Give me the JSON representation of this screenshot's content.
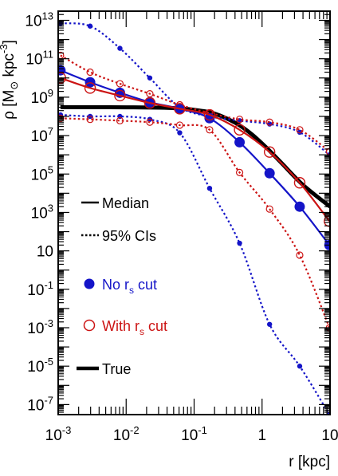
{
  "chart_data": {
    "type": "line",
    "x_scale": "log",
    "y_scale": "log",
    "xlim": [
      0.001,
      10
    ],
    "ylim": [
      3e-08,
      30000000000000.0
    ],
    "xlabel": "r  [kpc]",
    "ylabel": "ρ  [M☉ kpc⁻³]",
    "x_ticks": [
      {
        "value": 0.001,
        "base": "10",
        "exp": "-3"
      },
      {
        "value": 0.01,
        "base": "10",
        "exp": "-2"
      },
      {
        "value": 0.1,
        "base": "10",
        "exp": "-1"
      },
      {
        "value": 1,
        "base": "1",
        "exp": ""
      },
      {
        "value": 10,
        "base": "10",
        "exp": ""
      }
    ],
    "y_ticks": [
      {
        "value": 1e-07,
        "base": "10",
        "exp": "-7"
      },
      {
        "value": 1e-05,
        "base": "10",
        "exp": "-5"
      },
      {
        "value": 0.001,
        "base": "10",
        "exp": "-3"
      },
      {
        "value": 0.1,
        "base": "10",
        "exp": "-1"
      },
      {
        "value": 10,
        "base": "10",
        "exp": ""
      },
      {
        "value": 1000.0,
        "base": "10",
        "exp": "3"
      },
      {
        "value": 100000.0,
        "base": "10",
        "exp": "5"
      },
      {
        "value": 10000000.0,
        "base": "10",
        "exp": "7"
      },
      {
        "value": 1000000000.0,
        "base": "10",
        "exp": "9"
      },
      {
        "value": 100000000000.0,
        "base": "10",
        "exp": "11"
      },
      {
        "value": 10000000000000.0,
        "base": "10",
        "exp": "13"
      }
    ],
    "legend": [
      {
        "label": "Median",
        "sub": "",
        "suffix": "",
        "style": "solid-line",
        "color": "#000000"
      },
      {
        "label": "95% CIs",
        "sub": "",
        "suffix": "",
        "style": "dotted-line",
        "color": "#000000"
      },
      {
        "label": "No r",
        "sub": "s",
        "suffix": " cut",
        "style": "filled-circle",
        "color": "#1414c8"
      },
      {
        "label": "With r",
        "sub": "s",
        "suffix": " cut",
        "style": "open-circle",
        "color": "#cc1414"
      },
      {
        "label": "True",
        "sub": "",
        "suffix": "",
        "style": "thick-line",
        "color": "#000000"
      }
    ],
    "marker_x": [
      0.00108,
      0.00295,
      0.0081,
      0.0223,
      0.0614,
      0.169,
      0.467,
      1.29,
      3.58,
      9.8
    ],
    "series": [
      {
        "style": "true",
        "color": "#000000",
        "x": [
          0.00108,
          0.003,
          0.01,
          0.03,
          0.06,
          0.1,
          0.2,
          0.4,
          0.7,
          1.2,
          2,
          4,
          10
        ],
        "y": [
          300000000.0,
          300000000.0,
          296000000.0,
          285000000.0,
          260000000.0,
          220000000.0,
          140000000.0,
          47000000.0,
          12000000.0,
          2100000.0,
          330000.0,
          27000.0,
          2000
        ]
      },
      {
        "style": "median",
        "color": "#1414c8",
        "marker": "filled-large",
        "x": [
          0.00108,
          0.00295,
          0.0081,
          0.0223,
          0.0614,
          0.169,
          0.467,
          1.29,
          3.58,
          9.8
        ],
        "y": [
          25000000000.0,
          6000000000.0,
          1700000000.0,
          550000000.0,
          250000000.0,
          80000000.0,
          4500000.0,
          110000.0,
          2000,
          20
        ]
      },
      {
        "style": "median",
        "color": "#cc1414",
        "marker": "open-large",
        "x": [
          0.00108,
          0.00295,
          0.0081,
          0.0223,
          0.0614,
          0.169,
          0.467,
          1.29,
          3.58,
          9.8
        ],
        "y": [
          10000000000.0,
          3000000000.0,
          1200000000.0,
          500000000.0,
          250000000.0,
          120000000.0,
          20000000.0,
          1400000.0,
          35000.0,
          350
        ]
      },
      {
        "style": "ci",
        "color": "#1414c8",
        "marker": "filled-small",
        "x": [
          0.00108,
          0.00295,
          0.0081,
          0.0223,
          0.0614,
          0.169,
          0.467,
          1.29,
          3.58,
          9.8
        ],
        "y": [
          7000000000000.0,
          5000000000000.0,
          350000000000.0,
          10000000000.0,
          300000000.0,
          100000000.0,
          60000000.0,
          40000000.0,
          15000000.0,
          1000000.0
        ]
      },
      {
        "style": "ci",
        "color": "#1414c8",
        "marker": "filled-small",
        "x": [
          0.00108,
          0.00295,
          0.0081,
          0.0223,
          0.0614,
          0.169,
          0.467,
          1.29,
          3.58,
          9.8
        ],
        "y": [
          120000000.0,
          100000000.0,
          100000000.0,
          70000000.0,
          14000000.0,
          18000.0,
          25,
          0.0015,
          1e-05,
          3e-08
        ]
      },
      {
        "style": "ci",
        "color": "#cc1414",
        "marker": "open-small",
        "x": [
          0.00108,
          0.00295,
          0.0081,
          0.0223,
          0.0614,
          0.169,
          0.467,
          1.29,
          3.58,
          9.8
        ],
        "y": [
          150000000000.0,
          20000000000.0,
          5000000000.0,
          1500000000.0,
          400000000.0,
          150000000.0,
          70000000.0,
          50000000.0,
          20000000.0,
          1500000.0
        ]
      },
      {
        "style": "ci",
        "color": "#cc1414",
        "marker": "open-small",
        "x": [
          0.00108,
          0.00295,
          0.0081,
          0.0223,
          0.0614,
          0.169,
          0.467,
          1.29,
          3.58,
          9.8
        ],
        "y": [
          80000000.0,
          70000000.0,
          60000000.0,
          50000000.0,
          35000000.0,
          20000000.0,
          120000.0,
          1500,
          6,
          0.001
        ]
      }
    ],
    "grid": false,
    "legend_placement": "left-middle"
  }
}
